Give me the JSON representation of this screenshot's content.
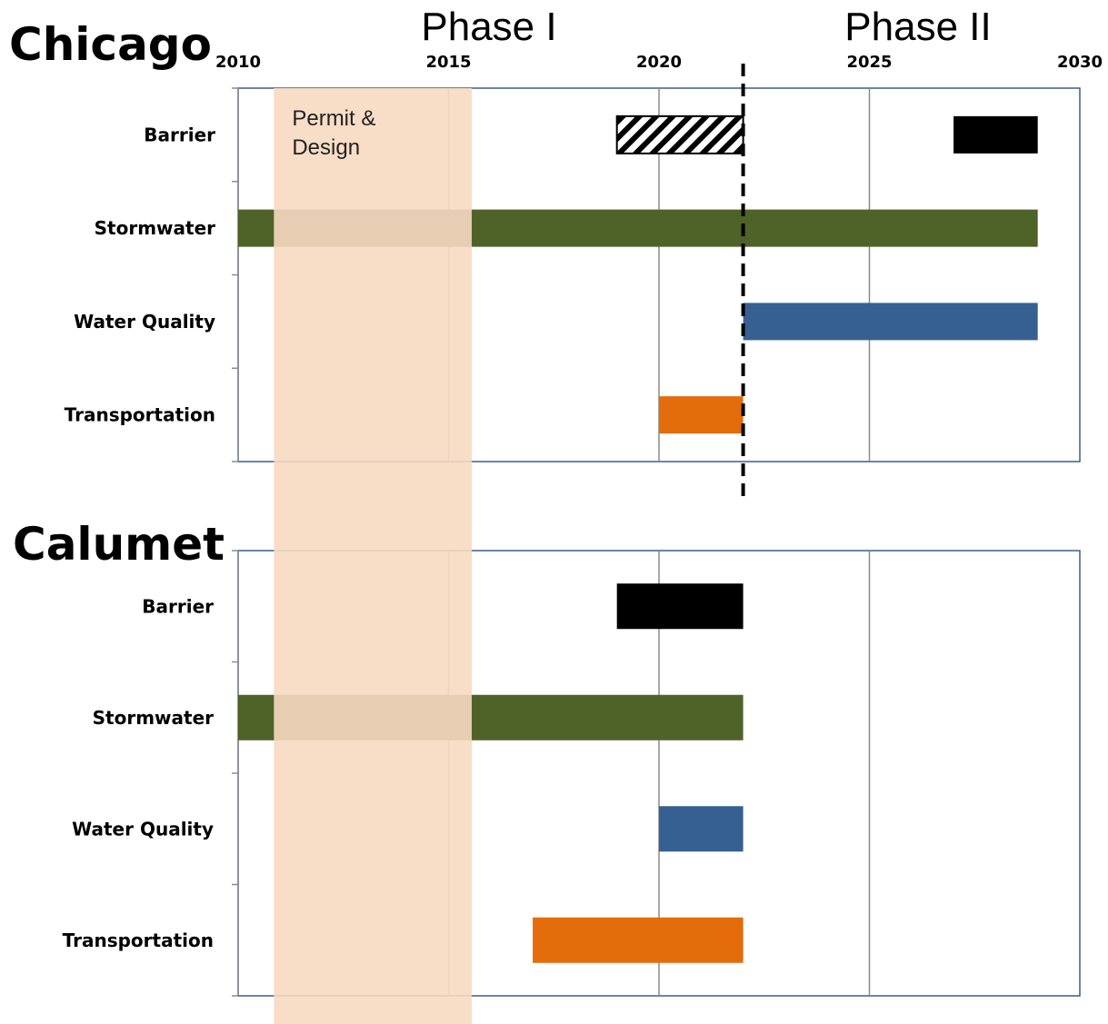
{
  "chart_data": {
    "type": "gantt",
    "x_axis": {
      "min": 2010,
      "max": 2030,
      "ticks": [
        2010,
        2015,
        2020,
        2025,
        2030
      ]
    },
    "phases": [
      {
        "label": "Phase I"
      },
      {
        "label": "Phase II"
      }
    ],
    "annotations": [
      {
        "label": "Permit & Design",
        "start": 2010.85,
        "end": 2015.55,
        "color": "#f7d9c1"
      }
    ],
    "divider_year": 2022,
    "panels": [
      {
        "title": "Chicago",
        "rows": [
          {
            "label": "Barrier",
            "bars": [
              {
                "start": 2019,
                "end": 2022,
                "color": "#000000",
                "pattern": "hatched"
              },
              {
                "start": 2027,
                "end": 2029,
                "color": "#000000",
                "pattern": "solid"
              }
            ]
          },
          {
            "label": "Stormwater",
            "bars": [
              {
                "start": 2010,
                "end": 2029,
                "color": "#4f6228",
                "pattern": "solid"
              }
            ]
          },
          {
            "label": "Water Quality",
            "bars": [
              {
                "start": 2022,
                "end": 2029,
                "color": "#376092",
                "pattern": "solid"
              }
            ]
          },
          {
            "label": "Transportation",
            "bars": [
              {
                "start": 2020,
                "end": 2022,
                "color": "#e46c0a",
                "pattern": "solid"
              }
            ]
          }
        ]
      },
      {
        "title": "Calumet",
        "rows": [
          {
            "label": "Barrier",
            "bars": [
              {
                "start": 2019,
                "end": 2022,
                "color": "#000000",
                "pattern": "solid"
              }
            ]
          },
          {
            "label": "Stormwater",
            "bars": [
              {
                "start": 2010,
                "end": 2022,
                "color": "#4f6228",
                "pattern": "solid"
              }
            ]
          },
          {
            "label": "Water Quality",
            "bars": [
              {
                "start": 2020,
                "end": 2022,
                "color": "#376092",
                "pattern": "solid"
              }
            ]
          },
          {
            "label": "Transportation",
            "bars": [
              {
                "start": 2017,
                "end": 2022,
                "color": "#e46c0a",
                "pattern": "solid"
              }
            ]
          }
        ]
      }
    ]
  }
}
